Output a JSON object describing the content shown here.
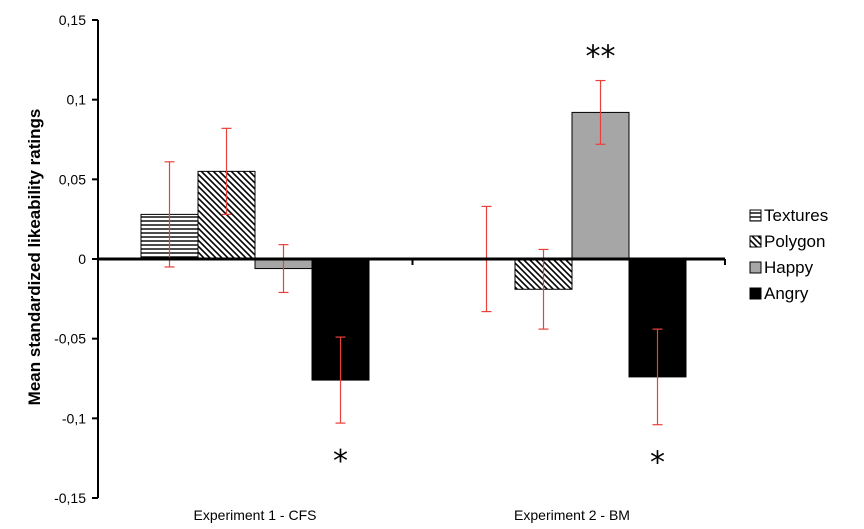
{
  "chart_data": {
    "type": "bar",
    "title": "",
    "xlabel": "",
    "ylabel": "Mean standardized likeability ratings",
    "ylim": [
      -0.15,
      0.15
    ],
    "yticks": [
      0.15,
      0.1,
      0.05,
      0,
      -0.05,
      -0.1,
      -0.15
    ],
    "ytick_labels": [
      "0,15",
      "0,1",
      "0,05",
      "0",
      "-0,05",
      "-0,1",
      "-0,15"
    ],
    "categories": [
      "Experiment 1 - CFS",
      "Experiment 2 - BM"
    ],
    "legend_position": "right",
    "grid": false,
    "series": [
      {
        "name": "Textures",
        "pattern": "horizontal-lines",
        "color": "#000000",
        "values": [
          0.028,
          0.0
        ],
        "errors": [
          0.033,
          0.033
        ]
      },
      {
        "name": "Polygon",
        "pattern": "diagonal-lines",
        "color": "#000000",
        "values": [
          0.055,
          -0.019
        ],
        "errors": [
          0.027,
          0.025
        ]
      },
      {
        "name": "Happy",
        "pattern": "solid",
        "color": "#a6a6a6",
        "values": [
          -0.006,
          0.092
        ],
        "errors": [
          0.015,
          0.02
        ]
      },
      {
        "name": "Angry",
        "pattern": "solid",
        "color": "#000000",
        "values": [
          -0.076,
          -0.074
        ],
        "errors": [
          0.027,
          0.03
        ]
      }
    ],
    "error_bar_color": "#e8413c",
    "annotations": [
      {
        "text": "*",
        "category": 0,
        "series": 3,
        "position": "below"
      },
      {
        "text": "**",
        "category": 1,
        "series": 2,
        "position": "above"
      },
      {
        "text": "*",
        "category": 1,
        "series": 3,
        "position": "below"
      }
    ]
  }
}
